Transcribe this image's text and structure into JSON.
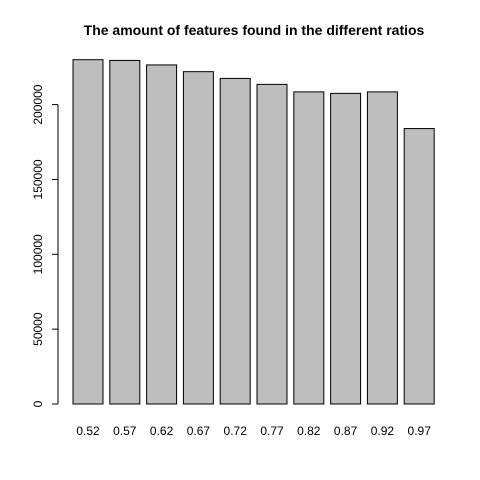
{
  "chart_data": {
    "type": "bar",
    "title": "The amount of features found in the different ratios",
    "xlabel": "",
    "ylabel": "",
    "categories": [
      "0.52",
      "0.57",
      "0.62",
      "0.67",
      "0.72",
      "0.77",
      "0.82",
      "0.87",
      "0.92",
      "0.97"
    ],
    "values": [
      230000,
      229500,
      226500,
      222000,
      217500,
      213500,
      208500,
      207500,
      208500,
      184000
    ],
    "ylim": [
      0,
      230000
    ],
    "yticks": [
      0,
      50000,
      100000,
      150000,
      200000
    ],
    "ytick_labels": [
      "0",
      "50000",
      "100000",
      "150000",
      "200000"
    ],
    "grid": false,
    "legend": "none",
    "colors": {
      "bar_fill": "#bebebe",
      "bar_stroke": "#000000",
      "background": "#ffffff"
    }
  }
}
